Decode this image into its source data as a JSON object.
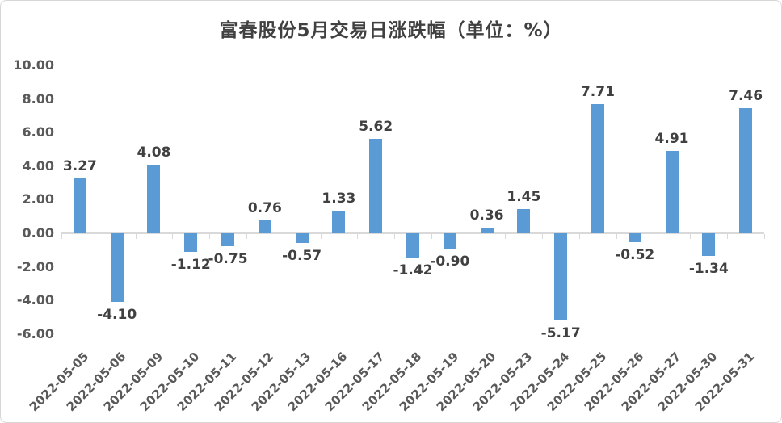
{
  "window": {
    "background": "#ffffff",
    "border_color": "#d7d7d7"
  },
  "title": "富春股份5月交易日涨跌幅（单位：%）",
  "chart_data": {
    "type": "bar",
    "title": "富春股份5月交易日涨跌幅（单位：%）",
    "xlabel": "",
    "ylabel": "",
    "grid": false,
    "legend": false,
    "ylim": [
      -6,
      10
    ],
    "ytick_step": 2,
    "yticks": [
      10,
      8,
      6,
      4,
      2,
      0,
      -2,
      -4,
      -6
    ],
    "ytick_labels": [
      "10.00",
      "8.00",
      "6.00",
      "4.00",
      "2.00",
      "0.00",
      "-2.00",
      "-4.00",
      "-6.00"
    ],
    "categories": [
      "2022-05-05",
      "2022-05-06",
      "2022-05-09",
      "2022-05-10",
      "2022-05-11",
      "2022-05-12",
      "2022-05-13",
      "2022-05-16",
      "2022-05-17",
      "2022-05-18",
      "2022-05-19",
      "2022-05-20",
      "2022-05-23",
      "2022-05-24",
      "2022-05-25",
      "2022-05-26",
      "2022-05-27",
      "2022-05-30",
      "2022-05-31"
    ],
    "values": [
      3.27,
      -4.1,
      4.08,
      -1.12,
      -0.75,
      0.76,
      -0.57,
      1.33,
      5.62,
      -1.42,
      -0.9,
      0.36,
      1.45,
      -5.17,
      7.71,
      -0.52,
      4.91,
      -1.34,
      7.46
    ],
    "value_labels": [
      "3.27",
      "-4.10",
      "4.08",
      "-1.12",
      "-0.75",
      "0.76",
      "-0.57",
      "1.33",
      "5.62",
      "-1.42",
      "-0.90",
      "0.36",
      "1.45",
      "-5.17",
      "7.71",
      "-0.52",
      "4.91",
      "-1.34",
      "7.46"
    ],
    "colors": {
      "bar": "#5B9BD5",
      "data_label": "#404040",
      "axis_line": "#D9D9D9",
      "axis_tick": "#D9D9D9",
      "axis_label": "#595959",
      "title": "#404040"
    }
  }
}
